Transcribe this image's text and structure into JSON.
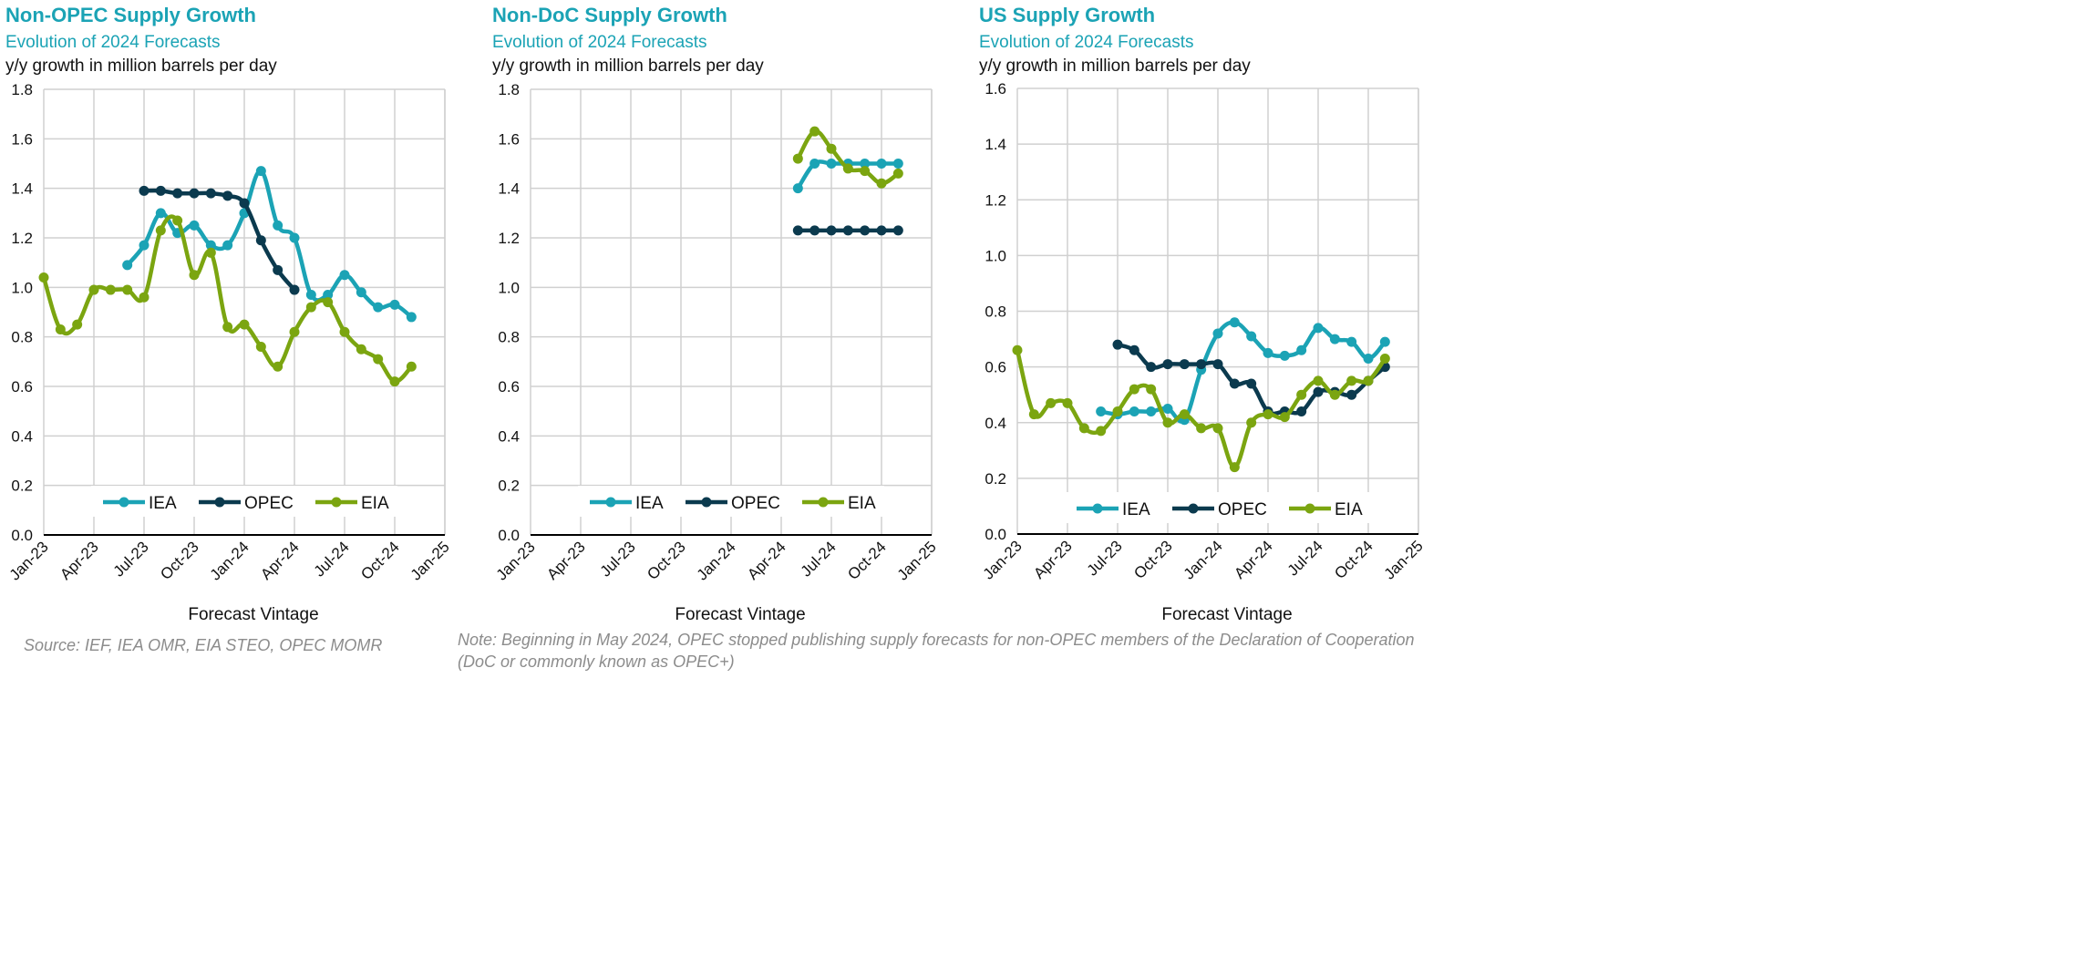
{
  "colors": {
    "IEA": "#1ba3b5",
    "OPEC": "#0b3a4e",
    "EIA": "#7ba510",
    "title": "#1ba3b5",
    "grid": "#d0d0d0"
  },
  "source": "Source: IEF, IEA OMR, EIA STEO, OPEC MOMR",
  "note": "Note: Beginning in May 2024, OPEC stopped publishing supply forecasts for non-OPEC members of the Declaration of Cooperation (DoC or commonly known as OPEC+)",
  "chart_data": [
    {
      "type": "line",
      "title": "Non-OPEC Supply Growth",
      "subtitle": "Evolution of 2024 Forecasts",
      "ylabel": "y/y growth in million barrels per day",
      "xlabel": "Forecast Vintage",
      "ylim": [
        0,
        1.8
      ],
      "yticks": [
        "0.0",
        "0.2",
        "0.4",
        "0.6",
        "0.8",
        "1.0",
        "1.2",
        "1.4",
        "1.6",
        "1.8"
      ],
      "xtick_labels": [
        "Jan-23",
        "Apr-23",
        "Jul-23",
        "Oct-23",
        "Jan-24",
        "Apr-24",
        "Jul-24",
        "Oct-24",
        "Jan-25"
      ],
      "x_range": [
        0,
        24
      ],
      "legend_position": "bottom-center",
      "series": [
        {
          "name": "IEA",
          "x": [
            5,
            6,
            7,
            8,
            9,
            10,
            11,
            12,
            13,
            14,
            15,
            16,
            17,
            18,
            19,
            20,
            21,
            22,
            23
          ],
          "values": [
            1.09,
            1.17,
            1.3,
            1.22,
            1.25,
            1.17,
            1.17,
            1.3,
            1.47,
            1.25,
            1.2,
            0.97,
            0.97,
            1.05,
            0.98,
            0.92,
            0.93,
            0.88,
            null
          ]
        },
        {
          "name": "OPEC",
          "x": [
            6,
            7,
            8,
            9,
            10,
            11,
            12,
            13,
            14,
            15
          ],
          "values": [
            1.39,
            1.39,
            1.38,
            1.38,
            1.38,
            1.37,
            1.34,
            1.19,
            1.07,
            0.99
          ]
        },
        {
          "name": "EIA",
          "x": [
            0,
            1,
            2,
            3,
            4,
            5,
            6,
            7,
            8,
            9,
            10,
            11,
            12,
            13,
            14,
            15,
            16,
            17,
            18,
            19,
            20,
            21,
            22
          ],
          "values": [
            1.04,
            0.83,
            0.85,
            0.99,
            0.99,
            0.99,
            0.96,
            1.23,
            1.27,
            1.05,
            1.14,
            0.84,
            0.85,
            0.76,
            0.68,
            0.82,
            0.92,
            0.94,
            0.82,
            0.75,
            0.71,
            0.62,
            0.68
          ]
        }
      ]
    },
    {
      "type": "line",
      "title": "Non-DoC Supply Growth",
      "subtitle": "Evolution of 2024 Forecasts",
      "ylabel": "y/y growth in million barrels per day",
      "xlabel": "Forecast Vintage",
      "ylim": [
        0,
        1.8
      ],
      "yticks": [
        "0.0",
        "0.2",
        "0.4",
        "0.6",
        "0.8",
        "1.0",
        "1.2",
        "1.4",
        "1.6",
        "1.8"
      ],
      "xtick_labels": [
        "Jan-23",
        "Apr-23",
        "Jul-23",
        "Oct-23",
        "Jan-24",
        "Apr-24",
        "Jul-24",
        "Oct-24",
        "Jan-25"
      ],
      "x_range": [
        0,
        24
      ],
      "legend_position": "bottom-center",
      "series": [
        {
          "name": "IEA",
          "x": [
            16,
            17,
            18,
            19,
            20,
            21,
            22
          ],
          "values": [
            1.4,
            1.5,
            1.5,
            1.5,
            1.5,
            1.5,
            1.5
          ]
        },
        {
          "name": "OPEC",
          "x": [
            16,
            17,
            18,
            19,
            20,
            21,
            22
          ],
          "values": [
            1.23,
            1.23,
            1.23,
            1.23,
            1.23,
            1.23,
            1.23
          ]
        },
        {
          "name": "EIA",
          "x": [
            16,
            17,
            18,
            19,
            20,
            21,
            22
          ],
          "values": [
            1.52,
            1.63,
            1.56,
            1.48,
            1.47,
            1.42,
            1.46
          ]
        }
      ]
    },
    {
      "type": "line",
      "title": "US Supply Growth",
      "subtitle": "Evolution of 2024 Forecasts",
      "ylabel": "y/y growth in million barrels per day",
      "xlabel": "Forecast Vintage",
      "ylim": [
        0,
        1.6
      ],
      "yticks": [
        "0.0",
        "0.2",
        "0.4",
        "0.6",
        "0.8",
        "1.0",
        "1.2",
        "1.4",
        "1.6"
      ],
      "xtick_labels": [
        "Jan-23",
        "Apr-23",
        "Jul-23",
        "Oct-23",
        "Jan-24",
        "Apr-24",
        "Jul-24",
        "Oct-24",
        "Jan-25"
      ],
      "x_range": [
        0,
        24
      ],
      "legend_position": "bottom-center",
      "series": [
        {
          "name": "IEA",
          "x": [
            5,
            6,
            7,
            8,
            9,
            10,
            11,
            12,
            13,
            14,
            15,
            16,
            17,
            18,
            19,
            20,
            21,
            22
          ],
          "values": [
            0.44,
            0.43,
            0.44,
            0.44,
            0.45,
            0.41,
            0.59,
            0.72,
            0.76,
            0.71,
            0.65,
            0.64,
            0.66,
            0.74,
            0.7,
            0.69,
            0.63,
            0.69
          ]
        },
        {
          "name": "OPEC",
          "x": [
            6,
            7,
            8,
            9,
            10,
            11,
            12,
            13,
            14,
            15,
            16,
            17,
            18,
            19,
            20,
            21,
            22
          ],
          "values": [
            0.68,
            0.66,
            0.6,
            0.61,
            0.61,
            0.61,
            0.61,
            0.54,
            0.54,
            0.44,
            0.44,
            0.44,
            0.51,
            0.51,
            0.5,
            0.55,
            0.6
          ]
        },
        {
          "name": "EIA",
          "x": [
            0,
            1,
            2,
            3,
            4,
            5,
            6,
            7,
            8,
            9,
            10,
            11,
            12,
            13,
            14,
            15,
            16,
            17,
            18,
            19,
            20,
            21,
            22
          ],
          "values": [
            0.66,
            0.43,
            0.47,
            0.47,
            0.38,
            0.37,
            0.44,
            0.52,
            0.52,
            0.4,
            0.43,
            0.38,
            0.38,
            0.24,
            0.4,
            0.43,
            0.42,
            0.5,
            0.55,
            0.5,
            0.55,
            0.55,
            0.63
          ]
        }
      ]
    }
  ]
}
